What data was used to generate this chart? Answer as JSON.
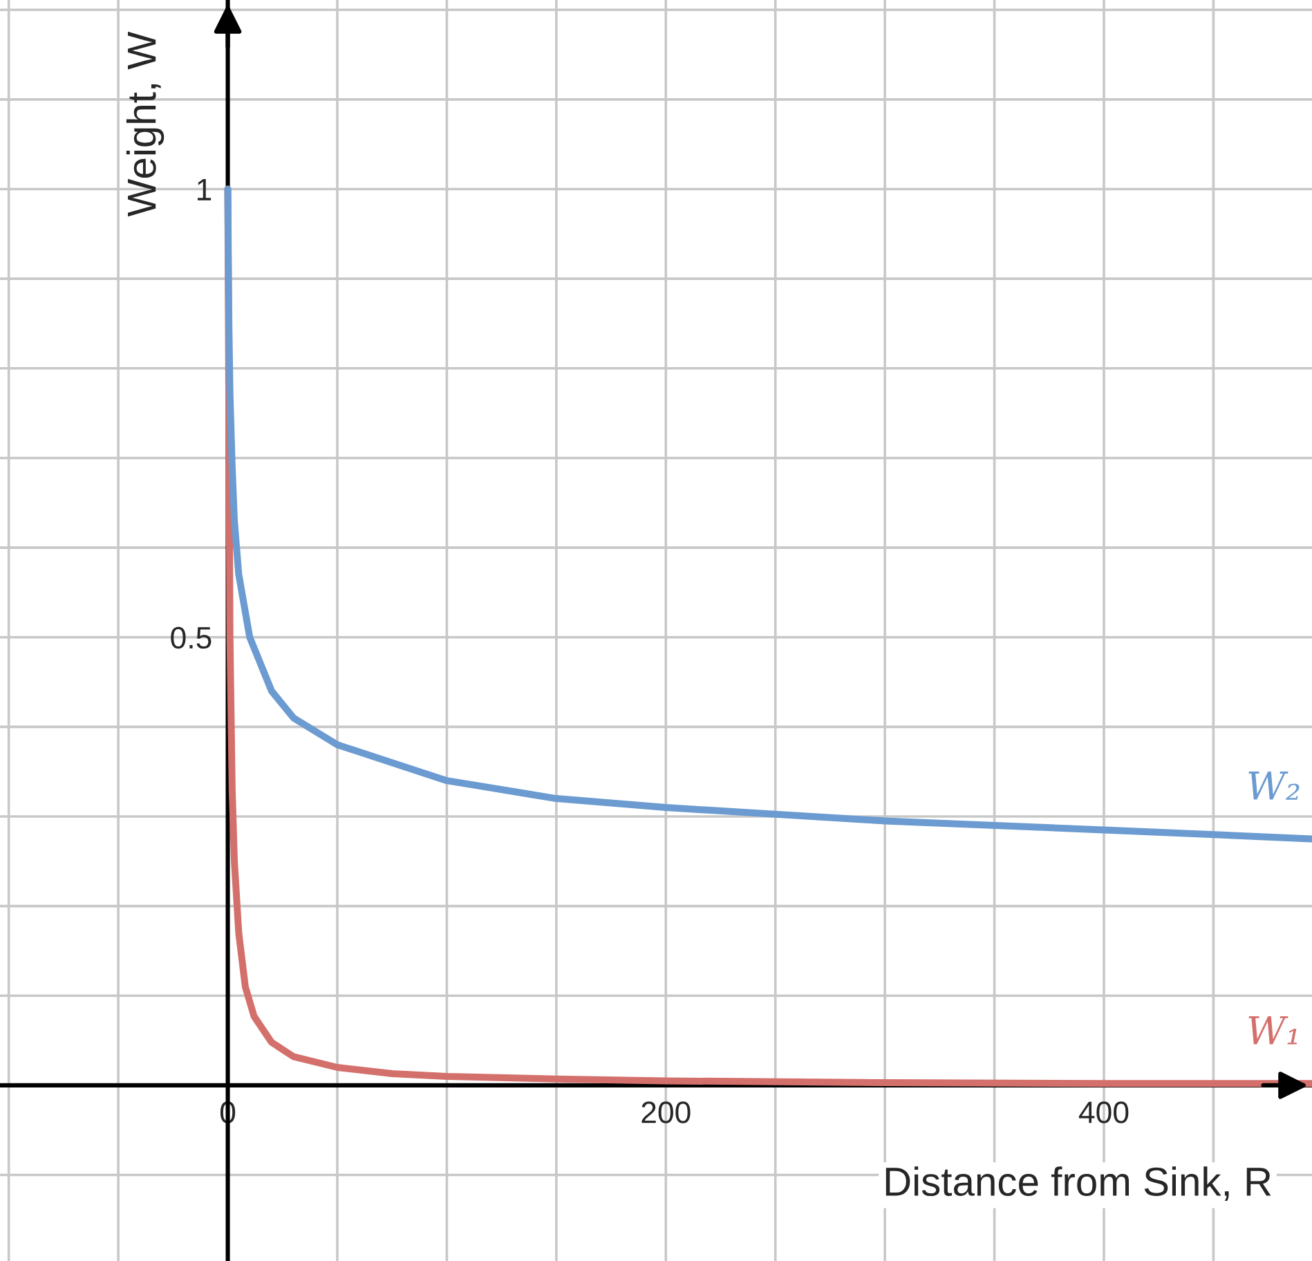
{
  "chart_data": {
    "type": "line",
    "xlabel": "Distance from Sink, R",
    "ylabel": "Weight, W",
    "xlim": [
      -104,
      495
    ],
    "ylim": [
      -0.196,
      1.211
    ],
    "xticks": [
      {
        "value": -100,
        "label": null
      },
      {
        "value": -50,
        "label": null
      },
      0,
      {
        "value": 50,
        "label": null
      },
      {
        "value": 100,
        "label": null
      },
      {
        "value": 150,
        "label": null
      },
      200,
      {
        "value": 250,
        "label": null
      },
      {
        "value": 300,
        "label": null
      },
      {
        "value": 350,
        "label": null
      },
      400,
      {
        "value": 450,
        "label": null
      }
    ],
    "yticks": [
      {
        "value": -0.1,
        "label": null
      },
      {
        "value": 0,
        "label": null
      },
      {
        "value": 0.1,
        "label": null
      },
      {
        "value": 0.2,
        "label": null
      },
      {
        "value": 0.3,
        "label": null
      },
      {
        "value": 0.4,
        "label": null
      },
      0.5,
      {
        "value": 0.6,
        "label": null
      },
      {
        "value": 0.7,
        "label": null
      },
      {
        "value": 0.8,
        "label": null
      },
      {
        "value": 0.9,
        "label": null
      },
      1,
      {
        "value": 1.1,
        "label": null
      },
      {
        "value": 1.2,
        "label": null
      }
    ],
    "grid": true,
    "marker": "none",
    "line_style": "solid",
    "series": [
      {
        "name": "W₁",
        "color": "#d4706c",
        "x": [
          0,
          1,
          2,
          3,
          5,
          8,
          12,
          20,
          30,
          50,
          75,
          100,
          150,
          200,
          300,
          400,
          495
        ],
        "values": [
          1,
          0.5,
          0.33,
          0.25,
          0.17,
          0.11,
          0.077,
          0.048,
          0.032,
          0.02,
          0.013,
          0.01,
          0.007,
          0.005,
          0.003,
          0.002,
          0.002
        ]
      },
      {
        "name": "W₂",
        "color": "#6b9bd0",
        "x": [
          0,
          0.5,
          1,
          2,
          3,
          5,
          10,
          20,
          30,
          50,
          75,
          100,
          150,
          200,
          300,
          400,
          495
        ],
        "values": [
          1,
          0.85,
          0.77,
          0.69,
          0.63,
          0.57,
          0.5,
          0.44,
          0.41,
          0.38,
          0.36,
          0.34,
          0.32,
          0.31,
          0.295,
          0.285,
          0.275
        ]
      }
    ]
  }
}
